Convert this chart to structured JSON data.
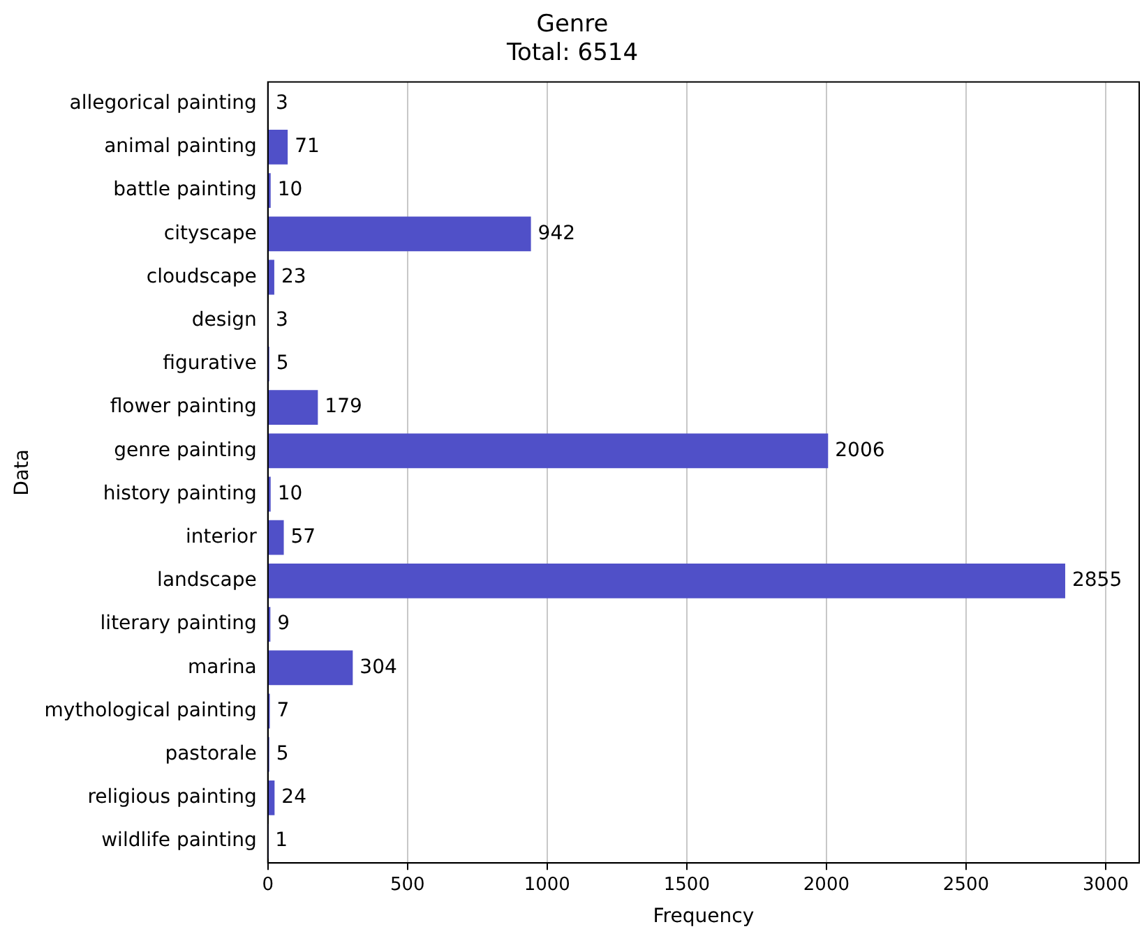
{
  "chart_data": {
    "type": "bar",
    "orientation": "horizontal",
    "title": "Genre",
    "subtitle": "Total: 6514",
    "xlabel": "Frequency",
    "ylabel": "Data",
    "categories": [
      "allegorical painting",
      "animal painting",
      "battle painting",
      "cityscape",
      "cloudscape",
      "design",
      "figurative",
      "flower painting",
      "genre painting",
      "history painting",
      "interior",
      "landscape",
      "literary painting",
      "marina",
      "mythological painting",
      "pastorale",
      "religious painting",
      "wildlife painting"
    ],
    "values": [
      3,
      71,
      10,
      942,
      23,
      3,
      5,
      179,
      2006,
      10,
      57,
      2855,
      9,
      304,
      7,
      5,
      24,
      1
    ],
    "color": "#5050c8",
    "xlim": [
      0,
      3120
    ],
    "xticks": [
      0,
      500,
      1000,
      1500,
      2000,
      2500,
      3000
    ],
    "grid": "x",
    "data_labels": true,
    "legend": false
  }
}
